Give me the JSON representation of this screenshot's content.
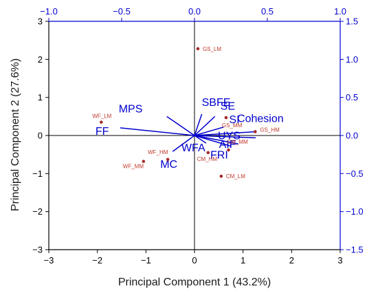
{
  "chart_data": {
    "type": "scatter",
    "subtype": "pca-biplot",
    "title": "",
    "xlabel": "Principal Component 1 (43.2%)",
    "ylabel": "Principal Component 2 (27.6%)",
    "xlim": [
      -3,
      3
    ],
    "ylim": [
      -3,
      3
    ],
    "x_ticks": [
      -3,
      -2,
      -1,
      0,
      1,
      2,
      3
    ],
    "y_ticks": [
      -3,
      -2,
      -1,
      0,
      1,
      2,
      3
    ],
    "loading_xlim": [
      -1.0,
      1.0
    ],
    "loading_ylim": [
      -1.5,
      1.5
    ],
    "top_ticks": [
      -1.0,
      -0.5,
      0.0,
      0.5,
      1.0
    ],
    "right_ticks": [
      -1.5,
      -1.0,
      -0.5,
      0.0,
      0.5,
      1.0,
      1.5
    ],
    "top_tick_labels": [
      "−1.0",
      "−0.5",
      "0.0",
      "0.5",
      "1.0"
    ],
    "right_tick_labels": [
      "−1.5",
      "−1.0",
      "−0.5",
      "0.0",
      "0.5",
      "1.0",
      "1.5"
    ],
    "left_tick_labels": [
      "−3",
      "−2",
      "−1",
      "0",
      "1",
      "2",
      "3"
    ],
    "bottom_tick_labels": [
      "−3",
      "−2",
      "−1",
      "0",
      "1",
      "2",
      "3"
    ],
    "scores": [
      {
        "label": "GS_LM",
        "x": 0.07,
        "y": 2.28
      },
      {
        "label": "WF_LM",
        "x": -1.92,
        "y": 0.35
      },
      {
        "label": "GS_MM",
        "x": 0.65,
        "y": 0.47
      },
      {
        "label": "GS_HM",
        "x": 1.25,
        "y": 0.1
      },
      {
        "label": "CM_MM",
        "x": 0.7,
        "y": -0.38
      },
      {
        "label": "WF_HM",
        "x": -0.55,
        "y": -0.63
      },
      {
        "label": "WF_MM",
        "x": -1.05,
        "y": -0.68
      },
      {
        "label": "CM_HM",
        "x": 0.28,
        "y": -0.45
      },
      {
        "label": "CM_LM",
        "x": 0.55,
        "y": -1.07
      }
    ],
    "loadings": [
      {
        "name": "MPS",
        "x": -0.19,
        "y": 0.25
      },
      {
        "name": "FF",
        "x": -0.51,
        "y": 0.1
      },
      {
        "name": "SBFE",
        "x": 0.05,
        "y": 0.28
      },
      {
        "name": "SE",
        "x": 0.14,
        "y": 0.25
      },
      {
        "name": "SI",
        "x": 0.2,
        "y": 0.11
      },
      {
        "name": "Cohesion",
        "x": 0.42,
        "y": 0.05
      },
      {
        "name": "UYS",
        "x": 0.42,
        "y": -0.03
      },
      {
        "name": "AIF",
        "x": 0.3,
        "y": -0.11
      },
      {
        "name": "FRI",
        "x": 0.25,
        "y": -0.14
      },
      {
        "name": "WFA",
        "x": 0.08,
        "y": -0.1
      },
      {
        "name": "MC",
        "x": -0.15,
        "y": -0.21
      }
    ],
    "grid": false,
    "zero_lines": true,
    "colors": {
      "scores": "#a52a2a",
      "loadings": "#0000cd",
      "axis_right_top": "#0000cd",
      "axis_left_bottom": "#000000"
    }
  }
}
